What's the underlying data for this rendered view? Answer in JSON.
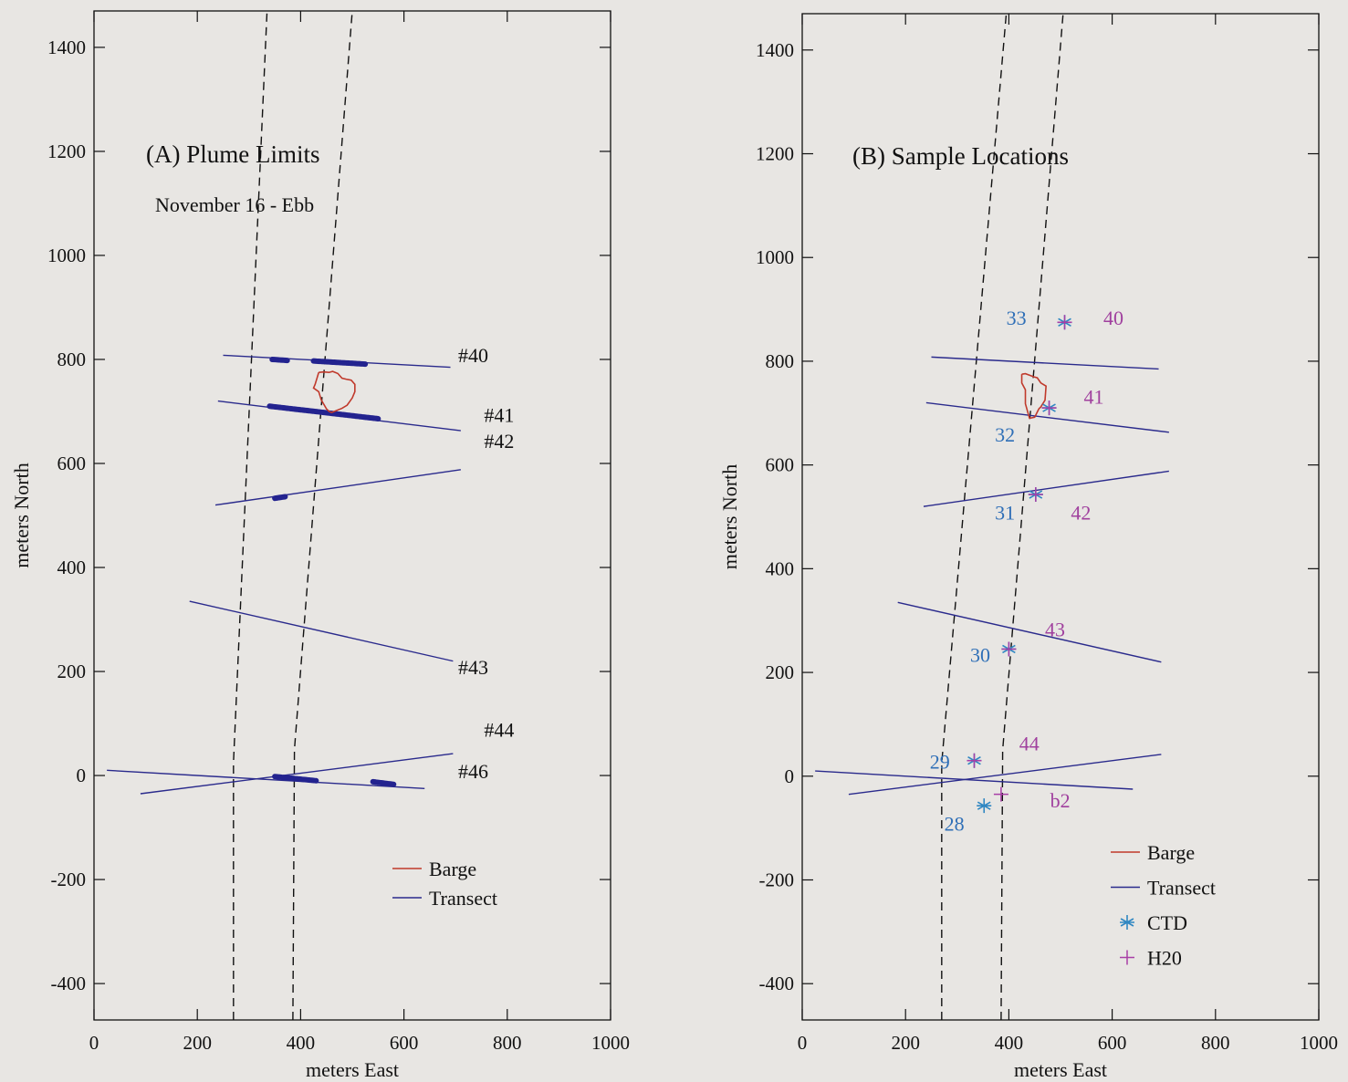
{
  "colors": {
    "background": "#e8e6e3",
    "axis": "#111111",
    "transect": "#2a2a8c",
    "plume_dots": "#23238f",
    "barge": "#c0392b",
    "ctd": "#2f87c2",
    "h2o": "#a83fa6",
    "ctd_label": "#2f6fb7",
    "h2o_label": "#a0409e",
    "channel": "#111111"
  },
  "chart_data": [
    {
      "type": "line",
      "panel": "A",
      "title": "(A) Plume Limits",
      "subtitle": "November 16 - Ebb",
      "xlabel": "meters East",
      "ylabel": "meters North",
      "xlim": [
        0,
        1000
      ],
      "ylim": [
        -470,
        1470
      ],
      "xticks": [
        0,
        200,
        400,
        600,
        800,
        1000
      ],
      "yticks": [
        -400,
        -200,
        0,
        200,
        400,
        600,
        800,
        1000,
        1200,
        1400
      ],
      "channel_lines": [
        [
          [
            270,
            -470
          ],
          [
            270,
            25
          ],
          [
            335,
            1470
          ]
        ],
        [
          [
            385,
            -470
          ],
          [
            388,
            50
          ],
          [
            500,
            1470
          ]
        ]
      ],
      "transects": [
        {
          "id": "#40",
          "x": [
            250,
            690
          ],
          "y": [
            808,
            785
          ]
        },
        {
          "id": "#41",
          "x": [
            240,
            710
          ],
          "y": [
            720,
            663
          ]
        },
        {
          "id": "#42",
          "x": [
            235,
            710
          ],
          "y": [
            520,
            588
          ]
        },
        {
          "id": "#43",
          "x": [
            185,
            695
          ],
          "y": [
            335,
            220
          ]
        },
        {
          "id": "#44",
          "x": [
            90,
            695
          ],
          "y": [
            -35,
            42
          ]
        },
        {
          "id": "#46",
          "x": [
            25,
            640
          ],
          "y": [
            10,
            -25
          ]
        }
      ],
      "transect_labels": [
        {
          "text": "#40",
          "x": 705,
          "y": 795
        },
        {
          "text": "#41",
          "x": 755,
          "y": 680
        },
        {
          "text": "#42",
          "x": 755,
          "y": 630
        },
        {
          "text": "#43",
          "x": 705,
          "y": 195
        },
        {
          "text": "#44",
          "x": 755,
          "y": 75
        },
        {
          "text": "#46",
          "x": 705,
          "y": -5
        }
      ],
      "plume_segments": [
        {
          "x": [
            345,
            375
          ],
          "y": [
            800,
            798
          ]
        },
        {
          "x": [
            425,
            525
          ],
          "y": [
            797,
            791
          ]
        },
        {
          "x": [
            340,
            550
          ],
          "y": [
            710,
            686
          ]
        },
        {
          "x": [
            350,
            370
          ],
          "y": [
            533,
            536
          ]
        },
        {
          "x": [
            350,
            430
          ],
          "y": [
            -2,
            -10
          ]
        },
        {
          "x": [
            540,
            580
          ],
          "y": [
            -12,
            -17
          ]
        }
      ],
      "barge": {
        "x": [
          435,
          432,
          428,
          425,
          435,
          440,
          450,
          455,
          460,
          470,
          480,
          490,
          500,
          505,
          505,
          498,
          488,
          480,
          472,
          462,
          455,
          445,
          435
        ],
        "y": [
          775,
          765,
          752,
          745,
          738,
          722,
          705,
          700,
          698,
          702,
          706,
          712,
          726,
          738,
          752,
          760,
          762,
          764,
          773,
          777,
          775,
          776,
          775
        ]
      },
      "legend": [
        {
          "label": "Barge",
          "kind": "line",
          "color_key": "barge"
        },
        {
          "label": "Transect",
          "kind": "line",
          "color_key": "transect"
        }
      ],
      "legend_position": "bottom-right"
    },
    {
      "type": "scatter",
      "panel": "B",
      "title": "(B) Sample Locations",
      "xlabel": "meters East",
      "ylabel": "meters North",
      "xlim": [
        0,
        1000
      ],
      "ylim": [
        -470,
        1470
      ],
      "xticks": [
        0,
        200,
        400,
        600,
        800,
        1000
      ],
      "yticks": [
        -400,
        -200,
        0,
        200,
        400,
        600,
        800,
        1000,
        1200,
        1400
      ],
      "channel_lines": [
        [
          [
            270,
            -470
          ],
          [
            270,
            25
          ],
          [
            395,
            1470
          ]
        ],
        [
          [
            385,
            -470
          ],
          [
            388,
            50
          ],
          [
            505,
            1470
          ]
        ]
      ],
      "transects": [
        {
          "x": [
            250,
            690
          ],
          "y": [
            808,
            785
          ]
        },
        {
          "x": [
            240,
            710
          ],
          "y": [
            720,
            663
          ]
        },
        {
          "x": [
            235,
            710
          ],
          "y": [
            520,
            588
          ]
        },
        {
          "x": [
            185,
            695
          ],
          "y": [
            335,
            220
          ]
        },
        {
          "x": [
            90,
            695
          ],
          "y": [
            -35,
            42
          ]
        },
        {
          "x": [
            25,
            640
          ],
          "y": [
            10,
            -25
          ]
        }
      ],
      "barge": {
        "x": [
          425,
          425,
          432,
          432,
          440,
          450,
          458,
          462,
          470,
          472,
          462,
          455,
          448,
          440,
          432,
          425
        ],
        "y": [
          775,
          758,
          745,
          718,
          690,
          692,
          708,
          712,
          725,
          752,
          758,
          768,
          770,
          773,
          776,
          775
        ]
      },
      "ctd_points": [
        {
          "x": 508,
          "y": 875
        },
        {
          "x": 478,
          "y": 710
        },
        {
          "x": 452,
          "y": 543
        },
        {
          "x": 400,
          "y": 245
        },
        {
          "x": 333,
          "y": 30
        },
        {
          "x": 352,
          "y": -57
        }
      ],
      "h2o_points": [
        {
          "x": 508,
          "y": 875
        },
        {
          "x": 478,
          "y": 710
        },
        {
          "x": 452,
          "y": 543
        },
        {
          "x": 400,
          "y": 245
        },
        {
          "x": 333,
          "y": 30
        },
        {
          "x": 385,
          "y": -35
        }
      ],
      "ctd_labels": [
        {
          "text": "33",
          "x": 395,
          "y": 870
        },
        {
          "text": "32",
          "x": 373,
          "y": 645
        },
        {
          "text": "31",
          "x": 373,
          "y": 495
        },
        {
          "text": "30",
          "x": 325,
          "y": 220
        },
        {
          "text": "29",
          "x": 247,
          "y": 15
        },
        {
          "text": "28",
          "x": 275,
          "y": -105
        }
      ],
      "h2o_labels": [
        {
          "text": "40",
          "x": 583,
          "y": 870
        },
        {
          "text": "41",
          "x": 545,
          "y": 718
        },
        {
          "text": "42",
          "x": 520,
          "y": 495
        },
        {
          "text": "43",
          "x": 470,
          "y": 270
        },
        {
          "text": "44",
          "x": 420,
          "y": 50
        },
        {
          "text": "b2",
          "x": 480,
          "y": -60
        }
      ],
      "legend": [
        {
          "label": "Barge",
          "kind": "line",
          "color_key": "barge"
        },
        {
          "label": "Transect",
          "kind": "line",
          "color_key": "transect"
        },
        {
          "label": "CTD",
          "kind": "asterisk",
          "color_key": "ctd"
        },
        {
          "label": "H20",
          "kind": "plus",
          "color_key": "h2o"
        }
      ],
      "legend_position": "bottom-right"
    }
  ]
}
